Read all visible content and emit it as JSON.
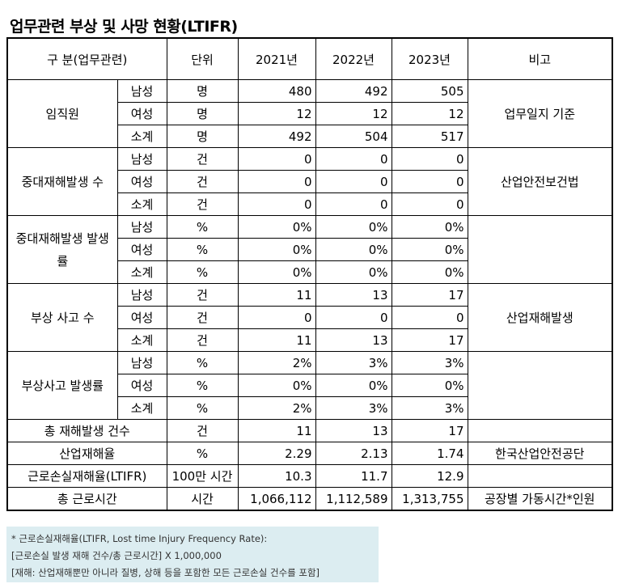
{
  "title": "업무관련 부상 및 사망 현황(LTIFR)",
  "headers": {
    "category": "구 분(업무관련)",
    "unit": "단위",
    "y2021": "2021년",
    "y2022": "2022년",
    "y2023": "2023년",
    "remark": "비고"
  },
  "groups": [
    {
      "name": "임직원",
      "remark": "업무일지 기준",
      "rows": [
        {
          "sub": "남성",
          "unit": "명",
          "v2021": "480",
          "v2022": "492",
          "v2023": "505"
        },
        {
          "sub": "여성",
          "unit": "명",
          "v2021": "12",
          "v2022": "12",
          "v2023": "12"
        },
        {
          "sub": "소계",
          "unit": "명",
          "v2021": "492",
          "v2022": "504",
          "v2023": "517"
        }
      ]
    },
    {
      "name": "중대재해발생 수",
      "remark": "산업안전보건법",
      "rows": [
        {
          "sub": "남성",
          "unit": "건",
          "v2021": "0",
          "v2022": "0",
          "v2023": "0"
        },
        {
          "sub": "여성",
          "unit": "건",
          "v2021": "0",
          "v2022": "0",
          "v2023": "0"
        },
        {
          "sub": "소계",
          "unit": "건",
          "v2021": "0",
          "v2022": "0",
          "v2023": "0"
        }
      ]
    },
    {
      "name": "중대재해발생 발생률",
      "remark": "",
      "rows": [
        {
          "sub": "남성",
          "unit": "%",
          "v2021": "0%",
          "v2022": "0%",
          "v2023": "0%"
        },
        {
          "sub": "여성",
          "unit": "%",
          "v2021": "0%",
          "v2022": "0%",
          "v2023": "0%"
        },
        {
          "sub": "소계",
          "unit": "%",
          "v2021": "0%",
          "v2022": "0%",
          "v2023": "0%"
        }
      ]
    },
    {
      "name": "부상 사고 수",
      "remark": "산업재해발생",
      "rows": [
        {
          "sub": "남성",
          "unit": "건",
          "v2021": "11",
          "v2022": "13",
          "v2023": "17"
        },
        {
          "sub": "여성",
          "unit": "건",
          "v2021": "0",
          "v2022": "0",
          "v2023": "0"
        },
        {
          "sub": "소계",
          "unit": "건",
          "v2021": "11",
          "v2022": "13",
          "v2023": "17"
        }
      ]
    },
    {
      "name": "부상사고 발생률",
      "remark": "",
      "rows": [
        {
          "sub": "남성",
          "unit": "%",
          "v2021": "2%",
          "v2022": "3%",
          "v2023": "3%"
        },
        {
          "sub": "여성",
          "unit": "%",
          "v2021": "0%",
          "v2022": "0%",
          "v2023": "0%"
        },
        {
          "sub": "소계",
          "unit": "%",
          "v2021": "2%",
          "v2022": "3%",
          "v2023": "3%"
        }
      ]
    }
  ],
  "summary": [
    {
      "name": "총 재해발생 건수",
      "unit": "건",
      "v2021": "11",
      "v2022": "13",
      "v2023": "17",
      "remark": ""
    },
    {
      "name": "산업재해율",
      "unit": "%",
      "v2021": "2.29",
      "v2022": "2.13",
      "v2023": "1.74",
      "remark": "한국산업안전공단"
    },
    {
      "name": "근로손실재해율(LTIFR)",
      "unit": "100만 시간",
      "v2021": "10.3",
      "v2022": "11.7",
      "v2023": "12.9",
      "remark": ""
    },
    {
      "name": "총 근로시간",
      "unit": "시간",
      "v2021": "1,066,112",
      "v2022": "1,112,589",
      "v2023": "1,313,755",
      "remark": "공장별 가동시간*인원"
    }
  ],
  "note": {
    "line1": "* 근로손실재해율(LTIFR, Lost time Injury Frequency Rate):",
    "line2": "[근로손실 발생 재해 건수/총 근로시간] X 1,000,000",
    "line3": "[재해: 산업재해뿐만 아니라 질병, 상해 등을 포함한 모든 근로손실 건수를 포함]"
  },
  "colors": {
    "note_bg": "#dcedf1",
    "border": "#000000"
  }
}
